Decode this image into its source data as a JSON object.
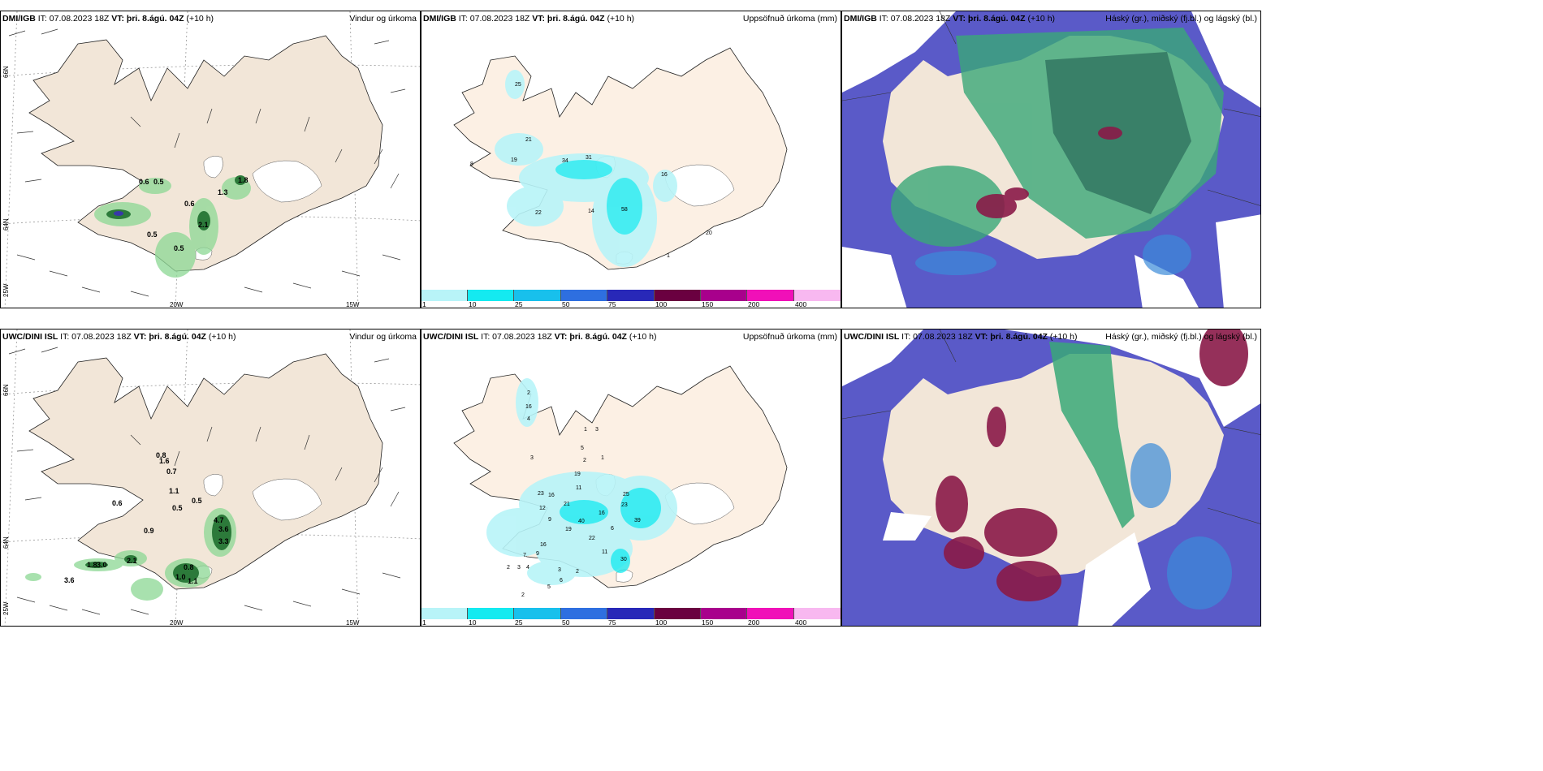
{
  "panels": [
    {
      "id": "p1",
      "model": "DMI/IGB",
      "init_prefix": "IT: 07.08.2023 18Z",
      "valid": "VT: þri. 8.ágú. 04Z",
      "lead": "(+10 h)",
      "product": "Vindur og úrkoma",
      "values": [
        "0.6",
        "0.5",
        "1.8",
        "1.3",
        "0.6",
        "2.1",
        "0.5",
        "0.5"
      ]
    },
    {
      "id": "p2",
      "model": "DMI/IGB",
      "init_prefix": "IT: 07.08.2023 18Z",
      "valid": "VT: þri. 8.ágú. 04Z",
      "lead": "(+10 h)",
      "product": "Uppsöfnuð úrkoma (mm)",
      "values": [
        "25",
        "21",
        "19",
        "8",
        "34",
        "31",
        "16",
        "22",
        "14",
        "58",
        "20",
        "1"
      ]
    },
    {
      "id": "p3",
      "model": "DMI/IGB",
      "init_prefix": "IT: 07.08.2023 18Z",
      "valid": "VT: þri. 8.ágú. 04Z",
      "lead": "(+10 h)",
      "product": "Háský (gr.), miðský (fj.bl.) og lágský (bl.)"
    },
    {
      "id": "p4",
      "model": "UWC/DINI ISL",
      "init_prefix": "IT: 07.08.2023 18Z",
      "valid": "VT: þri. 8.ágú. 04Z",
      "lead": "(+10 h)",
      "product": "Vindur og úrkoma",
      "values": [
        "0.8",
        "1.6",
        "0.7",
        "1.1",
        "0.6",
        "0.5",
        "0.5",
        "0.9",
        "4.7",
        "3.6",
        "3.3",
        "2.1",
        "1.8",
        "3.0",
        "3.6",
        "0.8",
        "1.0",
        "1.1"
      ]
    },
    {
      "id": "p5",
      "model": "UWC/DINI ISL",
      "init_prefix": "IT: 07.08.2023 18Z",
      "valid": "VT: þri. 8.ágú. 04Z",
      "lead": "(+10 h)",
      "product": "Uppsöfnuð úrkoma (mm)",
      "values": [
        "2",
        "16",
        "4",
        "1",
        "3",
        "5",
        "2",
        "1",
        "3",
        "19",
        "23",
        "16",
        "11",
        "21",
        "40",
        "16",
        "25",
        "23",
        "39",
        "12",
        "9",
        "19",
        "22",
        "6",
        "16",
        "11",
        "30",
        "7",
        "9",
        "2",
        "3",
        "4",
        "3",
        "2",
        "6",
        "5",
        "2"
      ]
    },
    {
      "id": "p6",
      "model": "UWC/DINI ISL",
      "init_prefix": "IT: 07.08.2023 18Z",
      "valid": "VT: þri. 8.ágú. 04Z",
      "lead": "(+10 h)",
      "product": "Háský (gr.), miðský (fj.bl.) og lágský (bl.)"
    }
  ],
  "axes": {
    "lat_66": "66N",
    "lat_64": "64N",
    "lon_20": "20W",
    "lon_15": "15W",
    "lon_25": "25W"
  },
  "colorbar": {
    "ticks": [
      "1",
      "10",
      "25",
      "50",
      "75",
      "100",
      "150",
      "200",
      "400"
    ],
    "colors": [
      "#b8f4f8",
      "#14eaf0",
      "#18c0ec",
      "#2e6fe0",
      "#2828b8",
      "#6a0040",
      "#a8008c",
      "#f010b8",
      "#f8b8f0"
    ]
  },
  "colors": {
    "land": "#f2e6d8",
    "land_p2": "#fcf0e4",
    "ocean_low_cloud": "#5a5ac8",
    "mid_cloud": "#8a1a48",
    "high_cloud": "#3aa878"
  }
}
